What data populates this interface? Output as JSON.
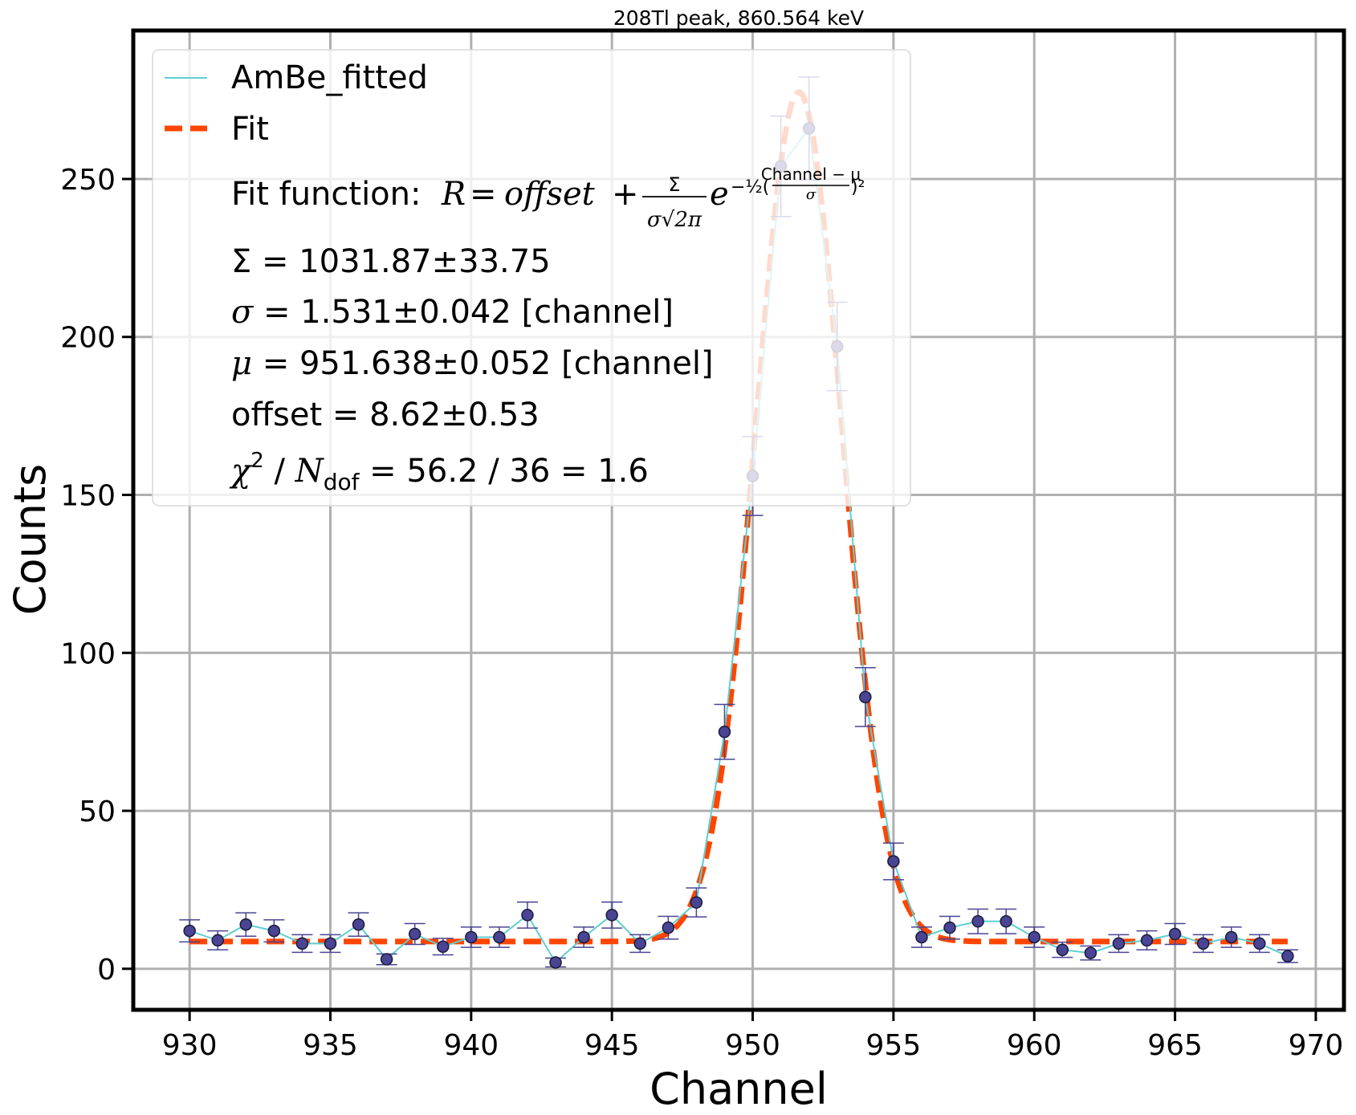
{
  "chart_data": {
    "type": "scatter",
    "title": "208Tl peak, 860.564 keV",
    "xlabel": "Channel",
    "ylabel": "Counts",
    "xlim": [
      928,
      971
    ],
    "ylim": [
      -13,
      297
    ],
    "grid": true,
    "legend_position": "top-left",
    "xticks": [
      930,
      935,
      940,
      945,
      950,
      955,
      960,
      965,
      970
    ],
    "yticks": [
      0,
      50,
      100,
      150,
      200,
      250
    ],
    "series": [
      {
        "name": "AmBe_fitted",
        "kind": "data",
        "color": "#5ecfd2",
        "marker_color": "#4a4494",
        "x": [
          930,
          931,
          932,
          933,
          934,
          935,
          936,
          937,
          938,
          939,
          940,
          941,
          942,
          943,
          944,
          945,
          946,
          947,
          948,
          949,
          950,
          951,
          952,
          953,
          954,
          955,
          956,
          957,
          958,
          959,
          960,
          961,
          962,
          963,
          964,
          965,
          966,
          967,
          968,
          969
        ],
        "y": [
          12,
          9,
          14,
          12,
          8,
          8,
          14,
          3,
          11,
          7,
          10,
          10,
          17,
          2,
          10,
          17,
          8,
          13,
          21,
          75,
          156,
          254,
          266,
          197,
          86,
          34,
          10,
          13,
          15,
          15,
          10,
          6,
          5,
          8,
          9,
          11,
          8,
          10,
          8,
          4
        ],
        "yerr": [
          3.5,
          3,
          3.7,
          3.5,
          2.8,
          2.8,
          3.7,
          1.7,
          3.3,
          2.6,
          3.2,
          3.2,
          4.1,
          1.4,
          3.2,
          4.1,
          2.8,
          3.6,
          4.6,
          8.7,
          12.5,
          15.9,
          16.3,
          14,
          9.3,
          5.8,
          3.2,
          3.6,
          3.9,
          3.9,
          3.2,
          2.4,
          2.2,
          2.8,
          3,
          3.3,
          2.8,
          3.2,
          2.8,
          2
        ]
      },
      {
        "name": "Fit",
        "kind": "fit",
        "color": "#ff4500",
        "style": "dashed",
        "sigma_total": 1031.87,
        "sigma": 1.531,
        "mu": 951.638,
        "offset": 8.62,
        "x_range": [
          930,
          969
        ]
      }
    ]
  },
  "legend": {
    "data_label": "AmBe_fitted",
    "fit_label": "Fit",
    "fit_function_prefix": "Fit function:",
    "fit_function": "R = offset + Σ/(σ√2π) e^(−½((Channel−μ)/σ)²)",
    "eq_R": "R",
    "eq_offset": "offset",
    "eq_sigma_sym": "Σ",
    "eq_den": "σ√2π",
    "eq_e": "e",
    "eq_exp": "−½(",
    "eq_frac_num": "Channel − μ",
    "eq_frac_den": "σ",
    "eq_exp_end": ")²",
    "sum_line": "Σ = 1031.87±33.75",
    "sigma_sym": "σ",
    "sigma_rest": " = 1.531±0.042 [channel]",
    "mu_sym": "μ",
    "mu_rest": " = 951.638±0.052 [channel]",
    "offset_line": "offset = 8.62±0.53",
    "chi_sym": "χ",
    "chi_sup": "2",
    "chi_slash": " / ",
    "chi_N": "N",
    "chi_sub": "dof",
    "chi_rest": " = 56.2 / 36 = 1.6"
  }
}
